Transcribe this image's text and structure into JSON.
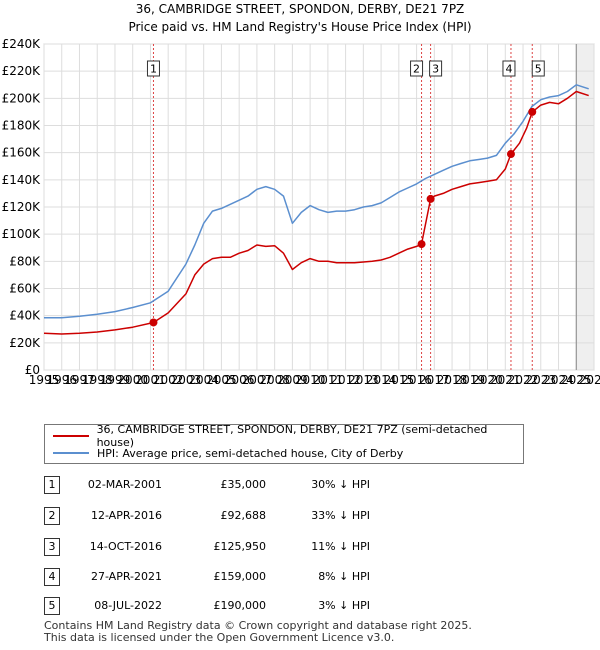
{
  "header": {
    "title": "36, CAMBRIDGE STREET, SPONDON, DERBY, DE21 7PZ",
    "subtitle": "Price paid vs. HM Land Registry's House Price Index (HPI)"
  },
  "colors": {
    "price": "#cc0000",
    "hpi": "#5b8fcf",
    "grid": "#dddddd",
    "marker_line": "#dd4444",
    "future": "#888888"
  },
  "chart_data": {
    "type": "line",
    "title": "36, CAMBRIDGE STREET, SPONDON, DERBY, DE21 7PZ",
    "xlim": [
      1995,
      2026
    ],
    "ylim": [
      0,
      240000
    ],
    "x_ticks": [
      1995,
      1996,
      1997,
      1998,
      1999,
      2000,
      2001,
      2002,
      2003,
      2004,
      2005,
      2006,
      2007,
      2008,
      2009,
      2010,
      2011,
      2012,
      2013,
      2014,
      2015,
      2016,
      2017,
      2018,
      2019,
      2020,
      2021,
      2022,
      2023,
      2024,
      2025,
      2026
    ],
    "y_ticks": [
      {
        "value": 0,
        "label": "£0"
      },
      {
        "value": 20000,
        "label": "£20K"
      },
      {
        "value": 40000,
        "label": "£40K"
      },
      {
        "value": 60000,
        "label": "£60K"
      },
      {
        "value": 80000,
        "label": "£80K"
      },
      {
        "value": 100000,
        "label": "£100K"
      },
      {
        "value": 120000,
        "label": "£120K"
      },
      {
        "value": 140000,
        "label": "£140K"
      },
      {
        "value": 160000,
        "label": "£160K"
      },
      {
        "value": 180000,
        "label": "£180K"
      },
      {
        "value": 200000,
        "label": "£200K"
      },
      {
        "value": 220000,
        "label": "£220K"
      },
      {
        "value": 240000,
        "label": "£240K"
      }
    ],
    "future_from": 2025.0,
    "series": [
      {
        "name": "36, CAMBRIDGE STREET, SPONDON, DERBY, DE21 7PZ (semi-detached house)",
        "color": "#cc0000",
        "points": [
          [
            1995.0,
            27000
          ],
          [
            1996.0,
            26500
          ],
          [
            1997.0,
            27000
          ],
          [
            1998.0,
            28000
          ],
          [
            1999.0,
            29500
          ],
          [
            2000.0,
            31500
          ],
          [
            2001.17,
            35000
          ],
          [
            2002.0,
            42000
          ],
          [
            2003.0,
            56000
          ],
          [
            2003.5,
            70000
          ],
          [
            2004.0,
            78000
          ],
          [
            2004.5,
            82000
          ],
          [
            2005.0,
            83000
          ],
          [
            2005.5,
            83000
          ],
          [
            2006.0,
            86000
          ],
          [
            2006.5,
            88000
          ],
          [
            2007.0,
            92000
          ],
          [
            2007.5,
            91000
          ],
          [
            2008.0,
            91500
          ],
          [
            2008.5,
            86000
          ],
          [
            2009.0,
            74000
          ],
          [
            2009.5,
            79000
          ],
          [
            2010.0,
            82000
          ],
          [
            2010.5,
            80000
          ],
          [
            2011.0,
            80000
          ],
          [
            2011.5,
            79000
          ],
          [
            2012.0,
            79000
          ],
          [
            2012.5,
            79000
          ],
          [
            2013.0,
            79500
          ],
          [
            2013.5,
            80000
          ],
          [
            2014.0,
            81000
          ],
          [
            2014.5,
            83000
          ],
          [
            2015.0,
            86000
          ],
          [
            2015.5,
            89000
          ],
          [
            2016.0,
            91000
          ],
          [
            2016.28,
            92688
          ],
          [
            2016.79,
            125950
          ],
          [
            2017.0,
            128000
          ],
          [
            2017.5,
            130000
          ],
          [
            2018.0,
            133000
          ],
          [
            2018.5,
            135000
          ],
          [
            2019.0,
            137000
          ],
          [
            2019.5,
            138000
          ],
          [
            2020.0,
            139000
          ],
          [
            2020.5,
            140000
          ],
          [
            2021.0,
            148000
          ],
          [
            2021.32,
            159000
          ],
          [
            2021.8,
            167000
          ],
          [
            2022.2,
            178000
          ],
          [
            2022.52,
            190000
          ],
          [
            2023.0,
            195000
          ],
          [
            2023.5,
            197000
          ],
          [
            2024.0,
            196000
          ],
          [
            2024.5,
            200000
          ],
          [
            2025.0,
            205000
          ],
          [
            2025.7,
            202000
          ]
        ]
      },
      {
        "name": "HPI: Average price, semi-detached house, City of Derby",
        "color": "#5b8fcf",
        "points": [
          [
            1995.0,
            38500
          ],
          [
            1996.0,
            38500
          ],
          [
            1997.0,
            39500
          ],
          [
            1998.0,
            41000
          ],
          [
            1999.0,
            43000
          ],
          [
            2000.0,
            46000
          ],
          [
            2001.0,
            49500
          ],
          [
            2002.0,
            58000
          ],
          [
            2003.0,
            78000
          ],
          [
            2003.5,
            92000
          ],
          [
            2004.0,
            108000
          ],
          [
            2004.5,
            117000
          ],
          [
            2005.0,
            119000
          ],
          [
            2005.5,
            122000
          ],
          [
            2006.0,
            125000
          ],
          [
            2006.5,
            128000
          ],
          [
            2007.0,
            133000
          ],
          [
            2007.5,
            135000
          ],
          [
            2008.0,
            133000
          ],
          [
            2008.5,
            128000
          ],
          [
            2009.0,
            108000
          ],
          [
            2009.5,
            116000
          ],
          [
            2010.0,
            121000
          ],
          [
            2010.5,
            118000
          ],
          [
            2011.0,
            116000
          ],
          [
            2011.5,
            117000
          ],
          [
            2012.0,
            117000
          ],
          [
            2012.5,
            118000
          ],
          [
            2013.0,
            120000
          ],
          [
            2013.5,
            121000
          ],
          [
            2014.0,
            123000
          ],
          [
            2014.5,
            127000
          ],
          [
            2015.0,
            131000
          ],
          [
            2015.5,
            134000
          ],
          [
            2016.0,
            137000
          ],
          [
            2016.5,
            141000
          ],
          [
            2017.0,
            144000
          ],
          [
            2017.5,
            147000
          ],
          [
            2018.0,
            150000
          ],
          [
            2018.5,
            152000
          ],
          [
            2019.0,
            154000
          ],
          [
            2019.5,
            155000
          ],
          [
            2020.0,
            156000
          ],
          [
            2020.5,
            158000
          ],
          [
            2021.0,
            167000
          ],
          [
            2021.5,
            174000
          ],
          [
            2022.0,
            183000
          ],
          [
            2022.5,
            194000
          ],
          [
            2023.0,
            199000
          ],
          [
            2023.5,
            201000
          ],
          [
            2024.0,
            202000
          ],
          [
            2024.5,
            205000
          ],
          [
            2025.0,
            210000
          ],
          [
            2025.7,
            207000
          ]
        ]
      }
    ],
    "markers": [
      {
        "label": "1",
        "x": 2001.17,
        "y": 35000
      },
      {
        "label": "2",
        "x": 2016.28,
        "y": 92688
      },
      {
        "label": "3",
        "x": 2016.79,
        "y": 125950
      },
      {
        "label": "4",
        "x": 2021.32,
        "y": 159000
      },
      {
        "label": "5",
        "x": 2022.52,
        "y": 190000
      }
    ]
  },
  "legend": {
    "items": [
      "36, CAMBRIDGE STREET, SPONDON, DERBY, DE21 7PZ (semi-detached house)",
      "HPI: Average price, semi-detached house, City of Derby"
    ]
  },
  "transactions": [
    {
      "num": "1",
      "date": "02-MAR-2001",
      "price": "£35,000",
      "hpi": "30% ↓ HPI"
    },
    {
      "num": "2",
      "date": "12-APR-2016",
      "price": "£92,688",
      "hpi": "33% ↓ HPI"
    },
    {
      "num": "3",
      "date": "14-OCT-2016",
      "price": "£125,950",
      "hpi": "11% ↓ HPI"
    },
    {
      "num": "4",
      "date": "27-APR-2021",
      "price": "£159,000",
      "hpi": "8% ↓ HPI"
    },
    {
      "num": "5",
      "date": "08-JUL-2022",
      "price": "£190,000",
      "hpi": "3% ↓ HPI"
    }
  ],
  "footer": {
    "line1": "Contains HM Land Registry data © Crown copyright and database right 2025.",
    "line2": "This data is licensed under the Open Government Licence v3.0."
  }
}
